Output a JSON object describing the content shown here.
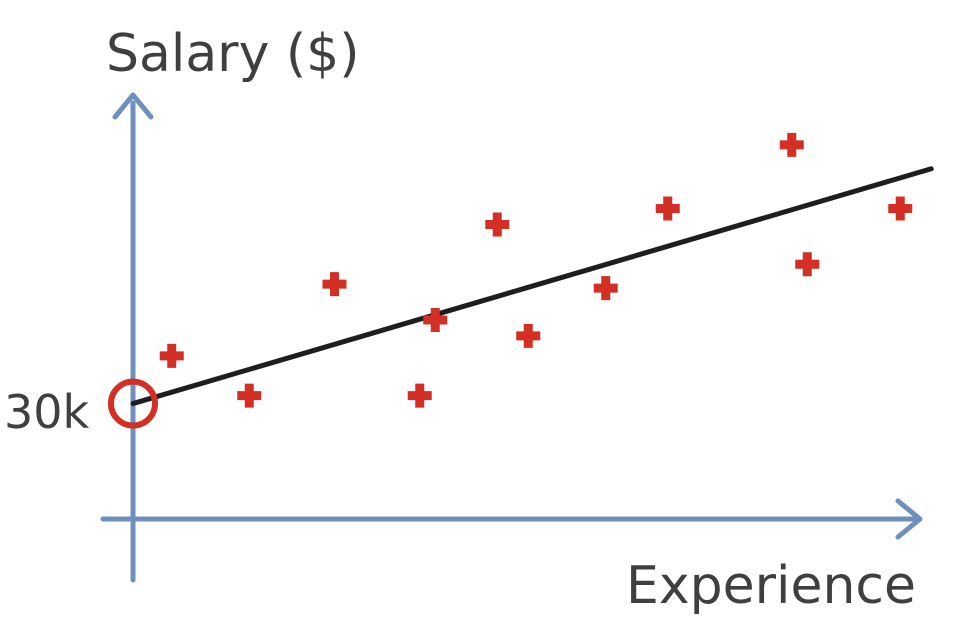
{
  "chart_data": {
    "type": "scatter",
    "title": "",
    "xlabel": "Experience",
    "ylabel": "Salary ($)",
    "xlim": [
      0,
      10
    ],
    "ylim": [
      0,
      100
    ],
    "points": [
      {
        "x": 0.5,
        "y": 41
      },
      {
        "x": 1.5,
        "y": 31
      },
      {
        "x": 2.6,
        "y": 59
      },
      {
        "x": 3.7,
        "y": 31
      },
      {
        "x": 3.9,
        "y": 50
      },
      {
        "x": 4.7,
        "y": 74
      },
      {
        "x": 5.1,
        "y": 46
      },
      {
        "x": 6.1,
        "y": 58
      },
      {
        "x": 6.9,
        "y": 78
      },
      {
        "x": 8.5,
        "y": 94
      },
      {
        "x": 8.7,
        "y": 64
      },
      {
        "x": 9.9,
        "y": 78
      }
    ],
    "trend_line": {
      "x": [
        0,
        10.3
      ],
      "y": [
        29,
        88
      ]
    },
    "intercept": {
      "label": "30k",
      "x": 0,
      "y": 29
    },
    "colors": {
      "axis": "#6f8fbf",
      "points": "#d32f24",
      "line": "#1e1e1e",
      "highlight": "#d32f24"
    }
  }
}
